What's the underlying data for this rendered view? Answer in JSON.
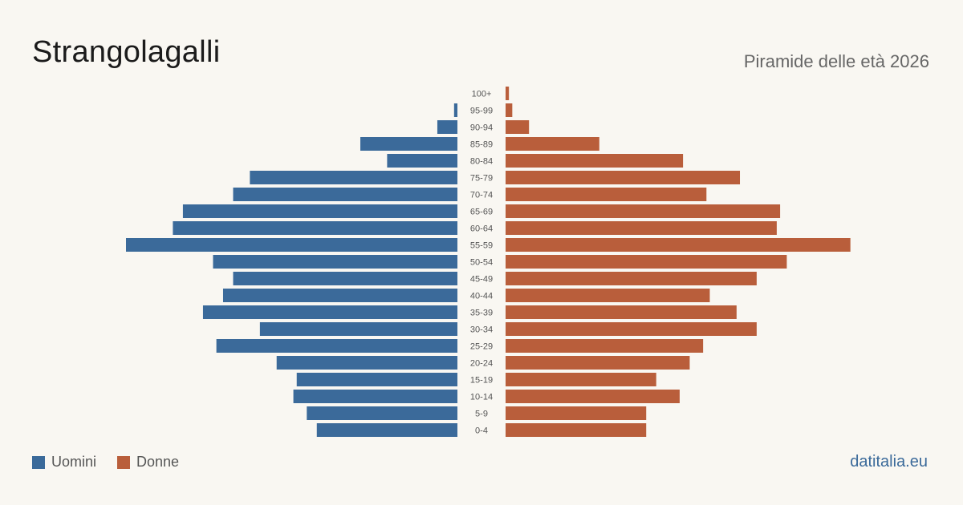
{
  "title": "Strangolagalli",
  "subtitle": "Piramide delle età 2026",
  "source": "datitalia.eu",
  "colors": {
    "men": "#3b6a9a",
    "women": "#b95e3b"
  },
  "legend": {
    "men": "Uomini",
    "women": "Donne"
  },
  "chart_data": {
    "type": "bar",
    "orientation": "horizontal-pyramid",
    "categories": [
      "100+",
      "95-99",
      "90-94",
      "85-89",
      "80-84",
      "75-79",
      "70-74",
      "65-69",
      "60-64",
      "55-59",
      "50-54",
      "45-49",
      "40-44",
      "35-39",
      "30-34",
      "25-29",
      "20-24",
      "15-19",
      "10-14",
      "5-9",
      "0-4"
    ],
    "series": [
      {
        "name": "Uomini",
        "values": [
          0,
          1,
          6,
          29,
          21,
          62,
          67,
          82,
          85,
          99,
          73,
          67,
          70,
          76,
          59,
          72,
          54,
          48,
          49,
          45,
          42
        ]
      },
      {
        "name": "Donne",
        "values": [
          1,
          2,
          7,
          28,
          53,
          70,
          60,
          82,
          81,
          103,
          84,
          75,
          61,
          69,
          75,
          59,
          55,
          45,
          52,
          42,
          42
        ]
      }
    ],
    "legend": "bottom-left",
    "grid": false
  }
}
